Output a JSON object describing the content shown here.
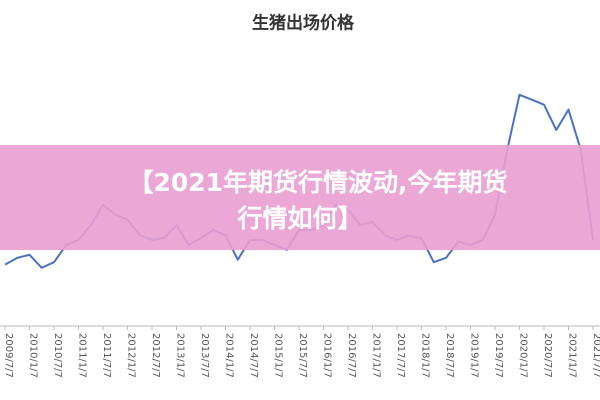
{
  "chart_data": {
    "type": "line",
    "title": "生猪出场价格",
    "categories": [
      "2009/7/7",
      null,
      "2010/1/7",
      null,
      "2010/7/7",
      null,
      "2011/1/7",
      null,
      "2011/7/7",
      null,
      "2012/1/7",
      null,
      "2012/7/7",
      null,
      "2013/1/7",
      null,
      "2013/7/7",
      null,
      "2014/1/7",
      null,
      "2014/7/7",
      null,
      "2015/1/7",
      null,
      "2015/7/7",
      null,
      "2016/1/7",
      null,
      "2016/7/7",
      null,
      "2017/1/7",
      null,
      "2017/7/7",
      null,
      "2018/1/7",
      null,
      "2018/7/7",
      null,
      "2019/1/7",
      null,
      "2019/7/7",
      null,
      "2020/1/7",
      null,
      "2020/7/7",
      null,
      "2021/1/7",
      null,
      "2021/7/7"
    ],
    "values": [
      10.9,
      12.0,
      12.5,
      10.4,
      11.3,
      14.1,
      14.9,
      17.3,
      20.6,
      19.0,
      18.2,
      15.7,
      14.9,
      15.2,
      17.3,
      14.1,
      15.2,
      16.5,
      15.7,
      11.7,
      14.9,
      14.9,
      14.1,
      13.3,
      16.5,
      16.5,
      17.3,
      20.6,
      19.8,
      17.3,
      17.8,
      15.7,
      14.9,
      15.6,
      15.2,
      11.3,
      12.0,
      14.6,
      14.1,
      14.9,
      19.0,
      29.5,
      38.4,
      37.6,
      36.8,
      32.7,
      36.0,
      29.5,
      14.9
    ],
    "color": "#4a72c4",
    "ylim": [
      0,
      45
    ]
  },
  "banner": {
    "lines": [
      "【2021年期货行情波动,今年期货",
      "行情如何】"
    ]
  }
}
